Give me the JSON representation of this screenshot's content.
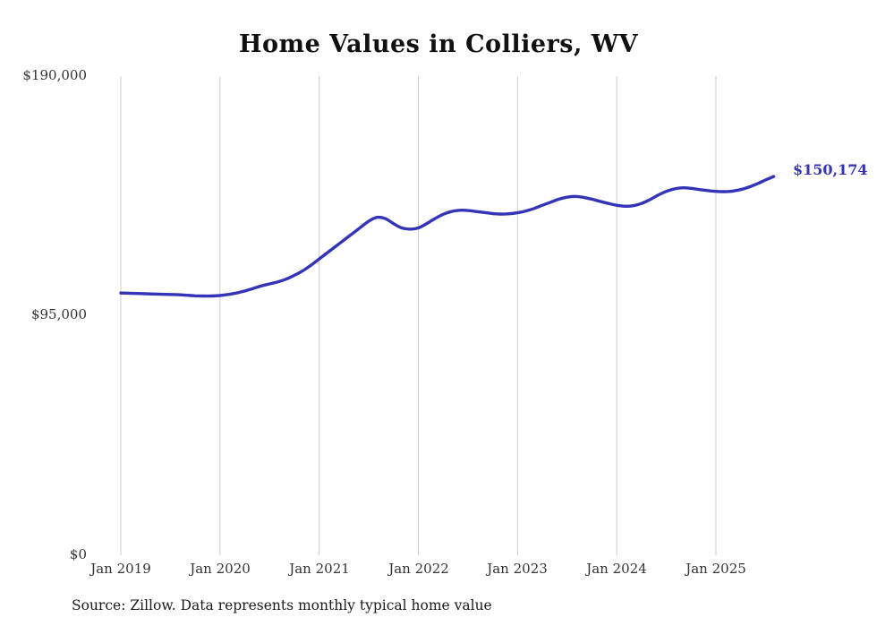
{
  "chart_data": {
    "type": "line",
    "title": "Home Values in Colliers, WV",
    "source": "Source: Zillow. Data represents monthly typical home value",
    "end_label": "$150,174",
    "line_color": "#3434b8",
    "grid_color": "#cccccc",
    "grid": "vertical",
    "legend": "none",
    "ylim": [
      0,
      190000
    ],
    "y_tick_labels": [
      "$0",
      "$95,000",
      "$190,000"
    ],
    "x_tick_labels": [
      "Jan 2019",
      "Jan 2020",
      "Jan 2021",
      "Jan 2022",
      "Jan 2023",
      "Jan 2024",
      "Jan 2025"
    ],
    "x": [
      "2019-01",
      "2019-02",
      "2019-03",
      "2019-04",
      "2019-05",
      "2019-06",
      "2019-07",
      "2019-08",
      "2019-09",
      "2019-10",
      "2019-11",
      "2019-12",
      "2020-01",
      "2020-02",
      "2020-03",
      "2020-04",
      "2020-05",
      "2020-06",
      "2020-07",
      "2020-08",
      "2020-09",
      "2020-10",
      "2020-11",
      "2020-12",
      "2021-01",
      "2021-02",
      "2021-03",
      "2021-04",
      "2021-05",
      "2021-06",
      "2021-07",
      "2021-08",
      "2021-09",
      "2021-10",
      "2021-11",
      "2021-12",
      "2022-01",
      "2022-02",
      "2022-03",
      "2022-04",
      "2022-05",
      "2022-06",
      "2022-07",
      "2022-08",
      "2022-09",
      "2022-10",
      "2022-11",
      "2022-12",
      "2023-01",
      "2023-02",
      "2023-03",
      "2023-04",
      "2023-05",
      "2023-06",
      "2023-07",
      "2023-08",
      "2023-09",
      "2023-10",
      "2023-11",
      "2023-12",
      "2024-01",
      "2024-02",
      "2024-03",
      "2024-04",
      "2024-05",
      "2024-06",
      "2024-07",
      "2024-08",
      "2024-09",
      "2024-10",
      "2024-11",
      "2024-12",
      "2025-01",
      "2025-02",
      "2025-03",
      "2025-04",
      "2025-05",
      "2025-06",
      "2025-07",
      "2025-08"
    ],
    "values": [
      104000,
      103900,
      103800,
      103700,
      103600,
      103500,
      103400,
      103300,
      103100,
      102900,
      102800,
      102800,
      103000,
      103400,
      104000,
      104800,
      105800,
      106800,
      107600,
      108400,
      109500,
      111000,
      112800,
      115000,
      117500,
      120000,
      122500,
      125000,
      127500,
      130000,
      132500,
      134000,
      133500,
      131500,
      129800,
      129300,
      129800,
      131500,
      133500,
      135200,
      136300,
      136800,
      136700,
      136300,
      135900,
      135500,
      135300,
      135400,
      135800,
      136500,
      137500,
      138800,
      140000,
      141200,
      142000,
      142300,
      141900,
      141200,
      140300,
      139500,
      138800,
      138400,
      138600,
      139500,
      141000,
      142800,
      144300,
      145300,
      145700,
      145500,
      145000,
      144600,
      144300,
      144200,
      144400,
      145000,
      146000,
      147300,
      148800,
      150174
    ]
  }
}
